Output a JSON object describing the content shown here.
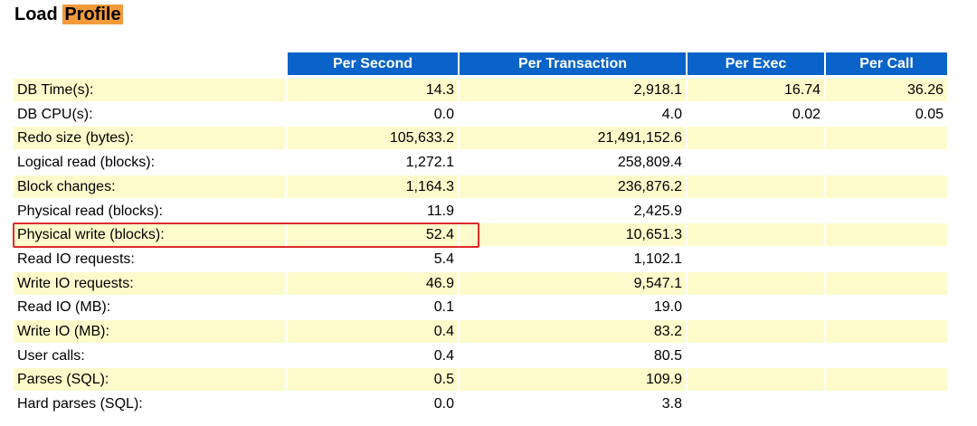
{
  "header": {
    "title": "Load",
    "highlight": "Profile"
  },
  "table": {
    "columns": [
      "Per Second",
      "Per Transaction",
      "Per Exec",
      "Per Call"
    ],
    "rows": [
      [
        "DB Time(s):",
        "14.3",
        "2,918.1",
        "16.74",
        "36.26"
      ],
      [
        "DB CPU(s):",
        "0.0",
        "4.0",
        "0.02",
        "0.05"
      ],
      [
        "Redo size (bytes):",
        "105,633.2",
        "21,491,152.6",
        null,
        null
      ],
      [
        "Logical read (blocks):",
        "1,272.1",
        "258,809.4",
        null,
        null
      ],
      [
        "Block changes:",
        "1,164.3",
        "236,876.2",
        null,
        null
      ],
      [
        "Physical read (blocks):",
        "11.9",
        "2,425.9",
        null,
        null
      ],
      [
        "Physical write (blocks):",
        "52.4",
        "10,651.3",
        null,
        null
      ],
      [
        "Read IO requests:",
        "5.4",
        "1,102.1",
        null,
        null
      ],
      [
        "Write IO requests:",
        "46.9",
        "9,547.1",
        null,
        null
      ],
      [
        "Read IO (MB):",
        "0.1",
        "19.0",
        null,
        null
      ],
      [
        "Write IO (MB):",
        "0.4",
        "83.2",
        null,
        null
      ],
      [
        "User calls:",
        "0.4",
        "80.5",
        null,
        null
      ],
      [
        "Parses (SQL):",
        "0.5",
        "109.9",
        null,
        null
      ],
      [
        "Hard parses (SQL):",
        "0.0",
        "3.8",
        null,
        null
      ]
    ]
  }
}
